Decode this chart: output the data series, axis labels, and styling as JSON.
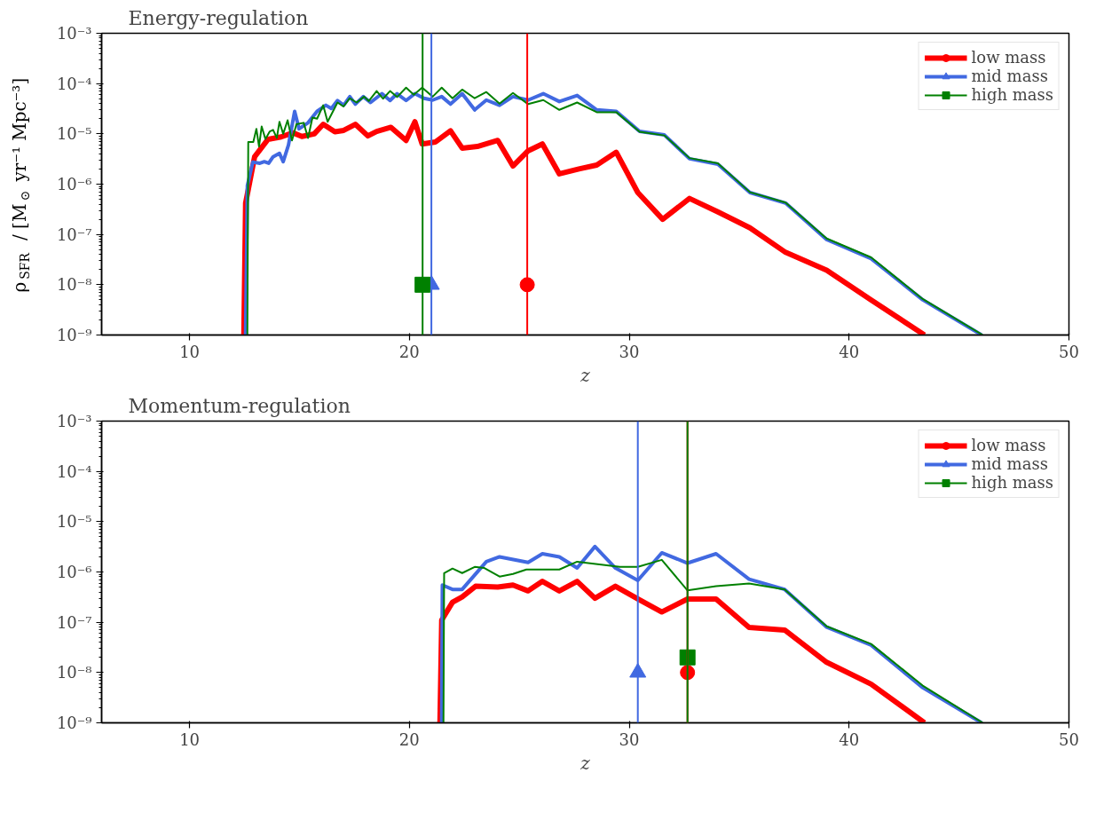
{
  "chart_data": [
    {
      "type": "line",
      "title": "Energy-regulation",
      "xlabel": "z",
      "ylabel": "ρ$_{SFR}$ / [M$_{⊙}$ yr⁻¹ Mpc⁻³]",
      "log": "y",
      "grid": false,
      "legend": "top right",
      "xlim": [
        6,
        50
      ],
      "xticks": [
        10,
        20,
        30,
        40,
        50
      ],
      "ylim": [
        1e-09,
        0.001
      ],
      "yticks": [
        {
          "value": 1e-09,
          "label": "10⁻⁹"
        },
        {
          "value": 1e-08,
          "label": "10⁻⁸"
        },
        {
          "value": 1e-07,
          "label": "10⁻⁷"
        },
        {
          "value": 1e-06,
          "label": "10⁻⁶"
        },
        {
          "value": 1e-05,
          "label": "10⁻⁵"
        },
        {
          "value": 0.0001,
          "label": "10⁻⁴"
        },
        {
          "value": 0.001,
          "label": "10⁻³"
        }
      ],
      "ref_lines": [
        {
          "axis": "x",
          "value": 25.36,
          "color": "#ff0000"
        },
        {
          "axis": "x",
          "value": 21.0,
          "color": "#4169e1"
        },
        {
          "axis": "x",
          "value": 20.6,
          "color": "#008000"
        }
      ],
      "series": [
        {
          "type": "line",
          "name": "low mass",
          "color": "#ff0000",
          "x": [
            12.47,
            12.55,
            12.96,
            13.57,
            14.17,
            14.7,
            15.11,
            15.67,
            16.08,
            16.61,
            17.01,
            17.54,
            18.11,
            18.51,
            19.16,
            19.85,
            20.25,
            20.58,
            21.19,
            21.87,
            22.4,
            23.09,
            24.02,
            24.71,
            25.4,
            26.05,
            26.82,
            27.71,
            28.52,
            29.41,
            30.39,
            31.52,
            32.74,
            34.03,
            35.49,
            37.11,
            38.98,
            41.0,
            43.43
          ],
          "values": [
            1e-09,
            4.2e-07,
            3.5e-06,
            7.8e-06,
            8.7e-06,
            1.05e-05,
            8.9e-06,
            1e-05,
            1.55e-05,
            1.1e-05,
            1.17e-05,
            1.55e-05,
            9.1e-06,
            1.12e-05,
            1.35e-05,
            7.4e-06,
            1.74e-05,
            6.3e-06,
            6.9e-06,
            1.15e-05,
            5.2e-06,
            5.6e-06,
            7.4e-06,
            2.3e-06,
            4.6e-06,
            6.3e-06,
            1.6e-06,
            2e-06,
            2.4e-06,
            4.3e-06,
            6.8e-07,
            2e-07,
            5.2e-07,
            2.8e-07,
            1.35e-07,
            4.4e-08,
            1.95e-08,
            5e-09,
            1e-09
          ]
        },
        {
          "type": "line",
          "name": "mid mass",
          "color": "#4169e1",
          "x": [
            12.55,
            12.63,
            12.88,
            13.2,
            13.4,
            13.6,
            13.8,
            14.09,
            14.26,
            14.5,
            14.78,
            14.98,
            15.39,
            15.8,
            16.2,
            16.45,
            16.73,
            17.01,
            17.29,
            17.54,
            17.9,
            18.23,
            18.75,
            19.12,
            19.44,
            19.85,
            20.25,
            20.66,
            21.06,
            21.47,
            21.87,
            22.4,
            22.97,
            23.5,
            24.1,
            24.71,
            25.4,
            26.09,
            26.82,
            27.63,
            28.52,
            29.41,
            30.47,
            31.6,
            32.74,
            34.03,
            35.49,
            37.11,
            38.98,
            41.0,
            43.35,
            46.03
          ],
          "values": [
            1e-09,
            9.3e-07,
            2.75e-06,
            2.6e-06,
            2.8e-06,
            2.6e-06,
            3.5e-06,
            4.1e-06,
            2.8e-06,
            6e-06,
            2.8e-05,
            1.26e-05,
            1.66e-05,
            2.8e-05,
            3.7e-05,
            3.2e-05,
            4.6e-05,
            3.7e-05,
            5.5e-05,
            3.9e-05,
            5.5e-05,
            4.2e-05,
            6.3e-05,
            4.6e-05,
            6.3e-05,
            4.6e-05,
            6.3e-05,
            5.1e-05,
            4.7e-05,
            5.5e-05,
            3.9e-05,
            6.3e-05,
            3e-05,
            4.7e-05,
            3.7e-05,
            5.5e-05,
            4.7e-05,
            6.3e-05,
            4.4e-05,
            5.8e-05,
            3e-05,
            2.8e-05,
            1.12e-05,
            9.5e-06,
            3.2e-06,
            2.5e-06,
            6.8e-07,
            4.2e-07,
            7.9e-08,
            3.3e-08,
            5e-09,
            1e-09
          ]
        },
        {
          "type": "line",
          "name": "high mass",
          "color": "#008000",
          "x": [
            12.63,
            12.67,
            12.9,
            13.04,
            13.16,
            13.28,
            13.45,
            13.65,
            13.8,
            13.97,
            14.09,
            14.26,
            14.46,
            14.66,
            14.86,
            15.19,
            15.39,
            15.59,
            15.8,
            16.08,
            16.28,
            16.73,
            17.0,
            17.29,
            17.6,
            17.94,
            18.15,
            18.51,
            18.8,
            19.12,
            19.44,
            19.85,
            20.2,
            20.58,
            21.06,
            21.47,
            21.96,
            22.4,
            22.97,
            23.5,
            24.1,
            24.71,
            25.4,
            26.09,
            26.82,
            27.63,
            28.52,
            29.41,
            30.47,
            31.6,
            32.74,
            34.03,
            35.49,
            37.11,
            38.98,
            41.0,
            43.35,
            46.08
          ],
          "values": [
            1e-09,
            6.9e-06,
            6.9e-06,
            1.26e-05,
            5.6e-06,
            1.4e-05,
            7.9e-06,
            1.12e-05,
            1.2e-05,
            8.3e-06,
            1.74e-05,
            1e-05,
            1.86e-05,
            7.4e-06,
            1.55e-05,
            1.66e-05,
            8.3e-06,
            2.1e-05,
            2e-05,
            3.7e-05,
            1.74e-05,
            4.2e-05,
            3.5e-05,
            5.1e-05,
            4.2e-05,
            5.5e-05,
            4.5e-05,
            7.1e-05,
            5e-05,
            7.1e-05,
            5.4e-05,
            8.3e-05,
            6e-05,
            8.3e-05,
            5.5e-05,
            8.3e-05,
            5.1e-05,
            7.6e-05,
            5.1e-05,
            6.8e-05,
            4e-05,
            6.5e-05,
            3.9e-05,
            4.7e-05,
            3e-05,
            4.2e-05,
            2.7e-05,
            2.7e-05,
            1.1e-05,
            9.3e-06,
            3.3e-06,
            2.6e-06,
            6.9e-07,
            4.3e-07,
            8.3e-08,
            3.5e-08,
            5.2e-09,
            1e-09
          ]
        },
        {
          "type": "scatter",
          "marker": "circle",
          "color": "#ff0000",
          "x": [
            25.36
          ],
          "values": [
            1e-08
          ]
        },
        {
          "type": "scatter",
          "marker": "triangle",
          "color": "#4169e1",
          "x": [
            21.0
          ],
          "values": [
            1e-08
          ]
        },
        {
          "type": "scatter",
          "marker": "square",
          "color": "#008000",
          "x": [
            20.6
          ],
          "values": [
            1e-08
          ]
        }
      ]
    },
    {
      "type": "line",
      "title": "Momentum-regulation",
      "xlabel": "z",
      "log": "y",
      "grid": false,
      "legend": "top right",
      "xlim": [
        6,
        50
      ],
      "xticks": [
        10,
        20,
        30,
        40,
        50
      ],
      "ylim": [
        1e-09,
        0.001
      ],
      "yticks": [
        {
          "value": 1e-09,
          "label": "10⁻⁹"
        },
        {
          "value": 1e-08,
          "label": "10⁻⁸"
        },
        {
          "value": 1e-07,
          "label": "10⁻⁷"
        },
        {
          "value": 1e-06,
          "label": "10⁻⁶"
        },
        {
          "value": 1e-05,
          "label": "10⁻⁵"
        },
        {
          "value": 0.0001,
          "label": "10⁻⁴"
        },
        {
          "value": 0.001,
          "label": "10⁻³"
        }
      ],
      "ref_lines": [
        {
          "axis": "x",
          "value": 32.65,
          "color": "#ff0000"
        },
        {
          "axis": "x",
          "value": 30.39,
          "color": "#4169e1"
        },
        {
          "axis": "x",
          "value": 32.65,
          "color": "#008000"
        }
      ],
      "series": [
        {
          "type": "line",
          "name": "low mass",
          "color": "#ff0000",
          "x": [
            21.39,
            21.47,
            21.96,
            22.4,
            23.01,
            24.02,
            24.71,
            25.4,
            26.05,
            26.82,
            27.63,
            28.44,
            29.37,
            30.39,
            31.48,
            32.65,
            33.95,
            35.45,
            37.07,
            38.98,
            41.0,
            43.43
          ],
          "values": [
            1e-09,
            1.1e-07,
            2.5e-07,
            3.2e-07,
            5.2e-07,
            5e-07,
            5.5e-07,
            4.2e-07,
            6.5e-07,
            4.2e-07,
            6.5e-07,
            3e-07,
            5.2e-07,
            2.9e-07,
            1.6e-07,
            2.9e-07,
            2.9e-07,
            7.9e-08,
            7e-08,
            1.6e-08,
            5.9e-09,
            1e-09
          ]
        },
        {
          "type": "line",
          "name": "mid mass",
          "color": "#4169e1",
          "x": [
            21.47,
            21.5,
            21.96,
            22.4,
            23.5,
            24.1,
            25.4,
            26.05,
            26.82,
            27.63,
            28.44,
            29.37,
            30.39,
            31.48,
            32.65,
            33.95,
            35.45,
            37.07,
            38.98,
            41.0,
            43.35,
            46.03
          ],
          "values": [
            1e-09,
            5.5e-07,
            4.5e-07,
            4.5e-07,
            1.6e-06,
            2e-06,
            1.55e-06,
            2.3e-06,
            2e-06,
            1.2e-06,
            3.2e-06,
            1.2e-06,
            6.8e-07,
            2.4e-06,
            1.5e-06,
            2.3e-06,
            7.2e-07,
            4.5e-07,
            8e-08,
            3.5e-08,
            5e-09,
            1e-09
          ]
        },
        {
          "type": "line",
          "name": "high mass",
          "color": "#008000",
          "x": [
            21.55,
            21.58,
            21.96,
            22.4,
            22.97,
            23.41,
            24.1,
            24.71,
            25.32,
            26.82,
            27.63,
            29.57,
            30.39,
            31.48,
            32.65,
            33.95,
            35.45,
            37.07,
            38.98,
            41.0,
            43.35,
            46.08
          ],
          "values": [
            1e-09,
            9.5e-07,
            1.17e-06,
            9.5e-07,
            1.26e-06,
            1.2e-06,
            8.1e-07,
            9.1e-07,
            1.12e-06,
            1.12e-06,
            1.6e-06,
            1.26e-06,
            1.26e-06,
            1.74e-06,
            4.3e-07,
            5.2e-07,
            5.9e-07,
            4.5e-07,
            8.3e-08,
            3.7e-08,
            5.5e-09,
            1e-09
          ]
        },
        {
          "type": "scatter",
          "marker": "circle",
          "color": "#ff0000",
          "x": [
            32.65
          ],
          "values": [
            1e-08
          ]
        },
        {
          "type": "scatter",
          "marker": "triangle",
          "color": "#4169e1",
          "x": [
            30.39
          ],
          "values": [
            1e-08
          ]
        },
        {
          "type": "scatter",
          "marker": "square",
          "color": "#008000",
          "x": [
            32.65
          ],
          "values": [
            2e-08
          ]
        }
      ]
    }
  ]
}
